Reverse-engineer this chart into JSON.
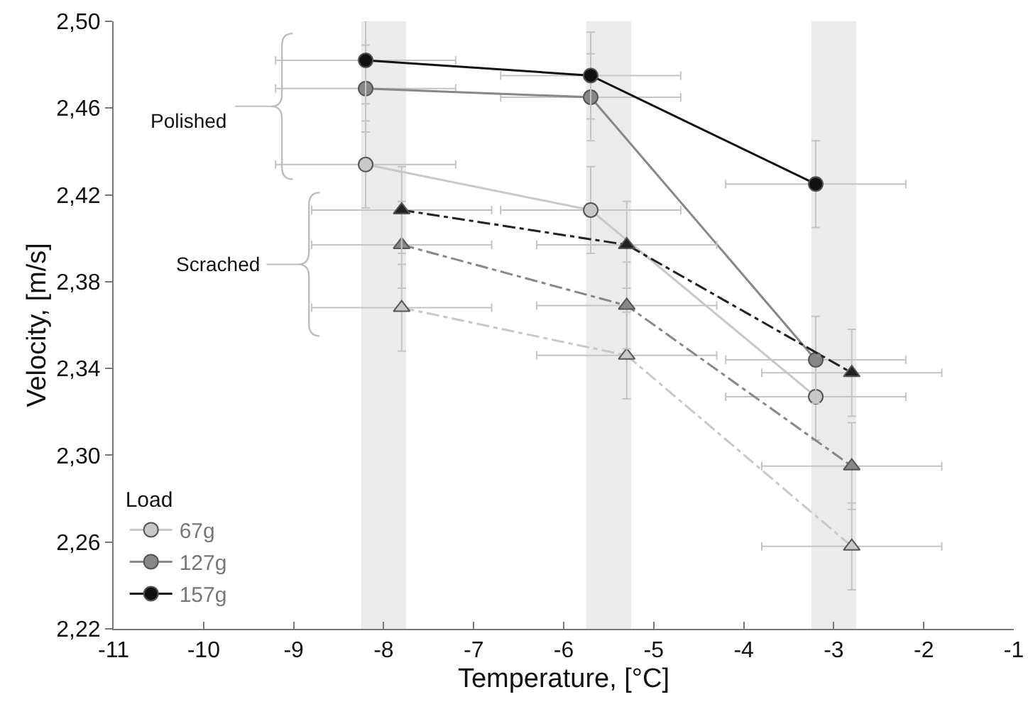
{
  "chart_data": {
    "type": "line",
    "xlabel": "Temperature, [°C]",
    "ylabel": "Velocity, [m/s]",
    "legend_title": "Load",
    "legend": "bottom left",
    "xlim": [
      -11,
      -1
    ],
    "xticks": [
      -11,
      -10,
      -9,
      -8,
      -7,
      -6,
      -5,
      -4,
      -3,
      -2,
      -1
    ],
    "ylim": [
      2.22,
      2.5
    ],
    "yticks": [
      {
        "value": 2.22,
        "label": "2,22"
      },
      {
        "value": 2.26,
        "label": "2,26"
      },
      {
        "value": 2.3,
        "label": "2,30"
      },
      {
        "value": 2.34,
        "label": "2,34"
      },
      {
        "value": 2.38,
        "label": "2,38"
      },
      {
        "value": 2.42,
        "label": "2,42"
      },
      {
        "value": 2.46,
        "label": "2,46"
      },
      {
        "value": 2.5,
        "label": "2,50"
      }
    ],
    "grid": false,
    "series": [
      {
        "name": "67g",
        "color": "#c8c8c8",
        "marker": "circle",
        "line_style": "solid",
        "x": [
          -8.2,
          -5.7,
          -3.2
        ],
        "values": [
          2.434,
          2.413,
          2.327
        ],
        "errors": [
          0.02,
          0.02,
          0.02
        ],
        "xerrors": [
          1,
          1,
          1
        ]
      },
      {
        "name": "127g",
        "color": "#878787",
        "marker": "circle",
        "line_style": "solid",
        "x": [
          -8.2,
          -5.7,
          -3.2
        ],
        "values": [
          2.469,
          2.465,
          2.344
        ],
        "errors": [
          0.02,
          0.02,
          0.02
        ],
        "xerrors": [
          1,
          1,
          1
        ]
      },
      {
        "name": "157g",
        "color": "#111111",
        "marker": "circle",
        "line_style": "solid",
        "x": [
          -8.2,
          -5.7,
          -3.2
        ],
        "values": [
          2.482,
          2.475,
          2.425
        ],
        "errors": [
          0.02,
          0.02,
          0.02
        ],
        "xerrors": [
          1,
          1,
          1
        ]
      },
      {
        "color": "#c8c8c8",
        "marker": "triangle",
        "line_style": "dashed",
        "x": [
          -7.8,
          -5.3,
          -2.8
        ],
        "values": [
          2.368,
          2.346,
          2.258
        ],
        "errors": [
          0.02,
          0.02,
          0.02
        ],
        "xerrors": [
          1,
          1,
          1
        ]
      },
      {
        "color": "#878787",
        "marker": "triangle",
        "line_style": "dashed",
        "x": [
          -7.8,
          -5.3,
          -2.8
        ],
        "values": [
          2.397,
          2.369,
          2.295
        ],
        "errors": [
          0.02,
          0.02,
          0.02
        ],
        "xerrors": [
          1,
          1,
          1
        ]
      },
      {
        "color": "#222222",
        "marker": "triangle",
        "line_style": "dashed",
        "x": [
          -7.8,
          -5.3,
          -2.8
        ],
        "values": [
          2.413,
          2.397,
          2.338
        ],
        "errors": [
          0.02,
          0.02,
          0.02
        ],
        "xerrors": [
          1,
          1,
          1
        ]
      }
    ],
    "bands": [
      {
        "axis": "x",
        "from": -8.25,
        "to": -7.75,
        "color": "#ebebeb"
      },
      {
        "axis": "x",
        "from": -5.75,
        "to": -5.25,
        "color": "#ebebeb"
      },
      {
        "axis": "x",
        "from": -3.25,
        "to": -2.75,
        "color": "#ebebeb"
      }
    ],
    "annotations": [
      "Polished",
      "Scrached"
    ]
  }
}
